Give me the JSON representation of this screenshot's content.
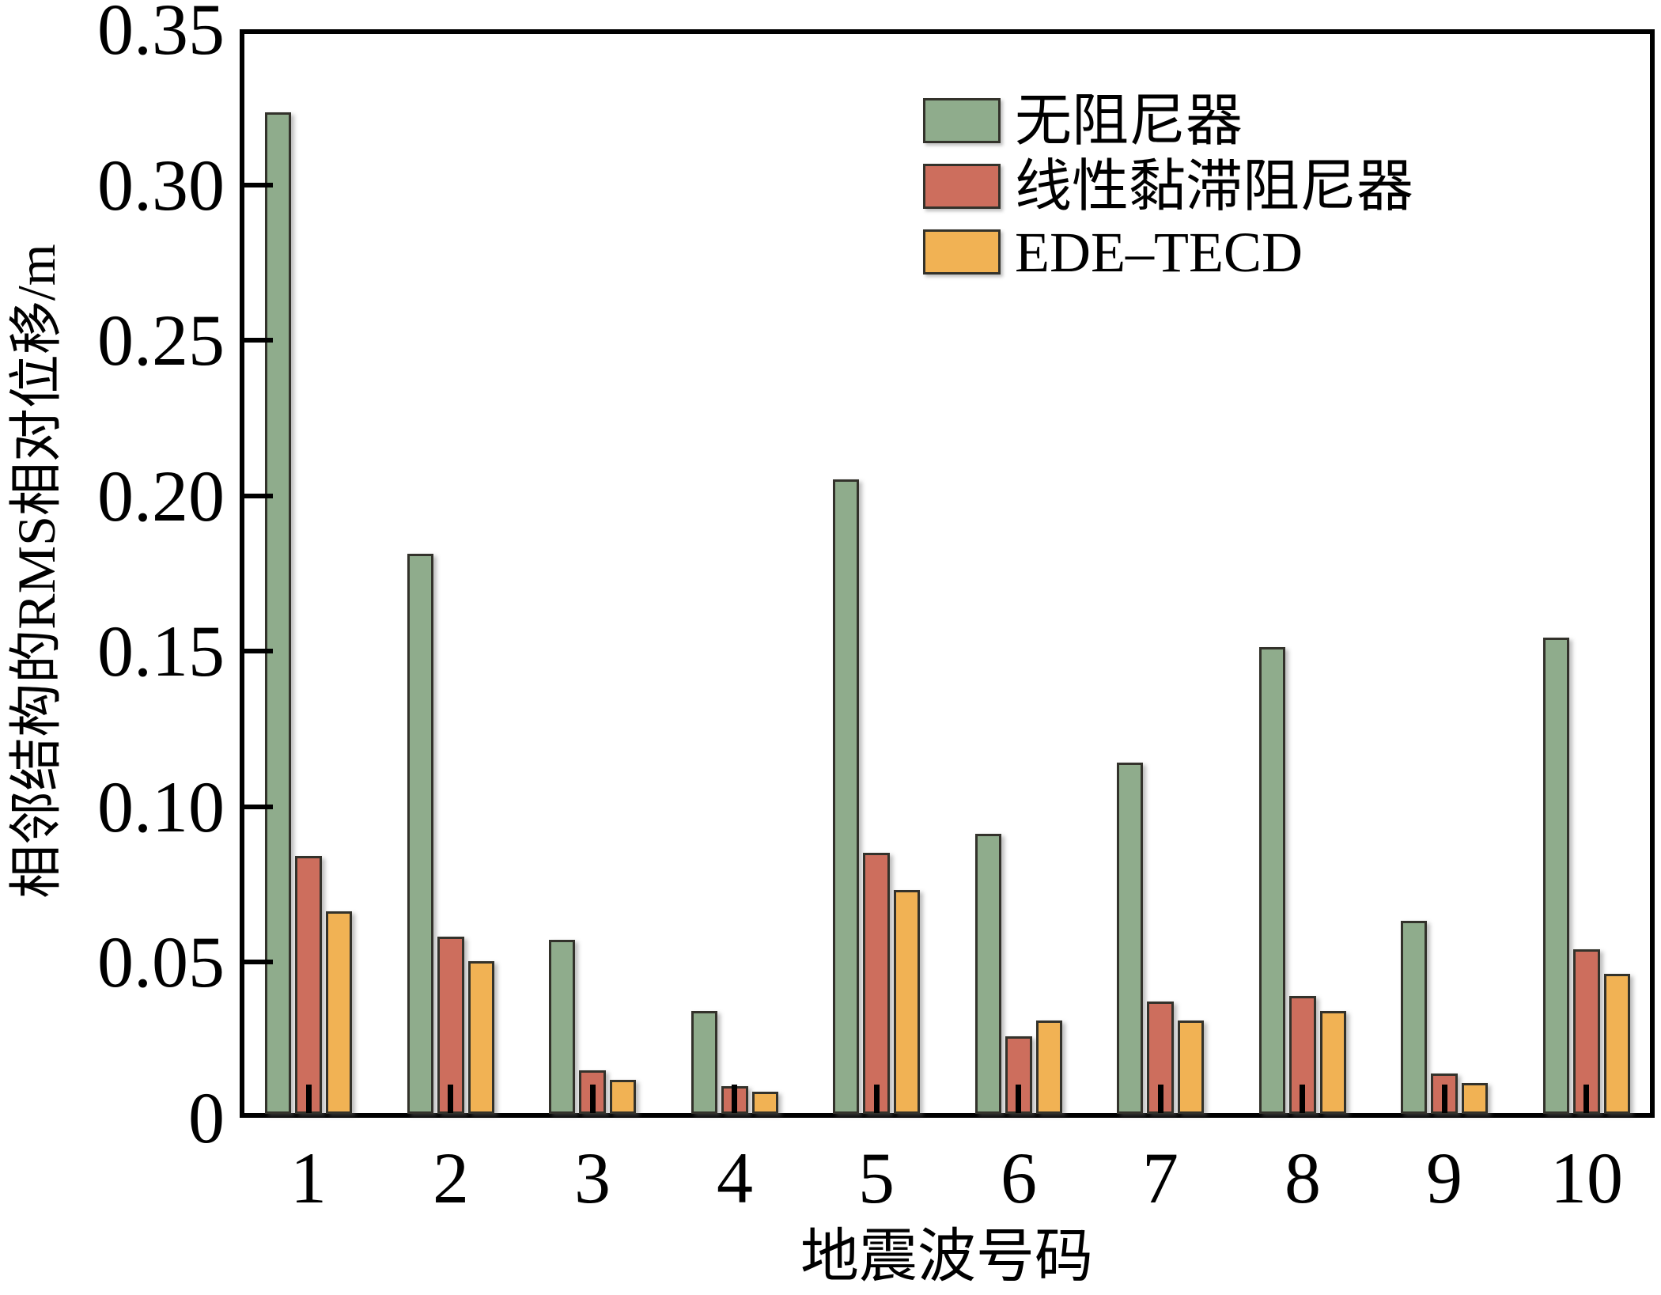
{
  "chart_data": {
    "type": "bar",
    "title": "",
    "xlabel": "地震波号码",
    "ylabel": "相邻结构的RMS相对位移/m",
    "categories": [
      "1",
      "2",
      "3",
      "4",
      "5",
      "6",
      "7",
      "8",
      "9",
      "10"
    ],
    "series": [
      {
        "name": "无阻尼器",
        "color": "#8FAC8C",
        "values": [
          0.322,
          0.18,
          0.056,
          0.033,
          0.204,
          0.09,
          0.113,
          0.15,
          0.062,
          0.153
        ]
      },
      {
        "name": "线性黏滞阻尼器",
        "color": "#CD6E5D",
        "values": [
          0.083,
          0.057,
          0.014,
          0.009,
          0.084,
          0.025,
          0.036,
          0.038,
          0.013,
          0.053
        ]
      },
      {
        "name": "EDE–TECD",
        "color": "#F1B254",
        "values": [
          0.065,
          0.049,
          0.011,
          0.007,
          0.072,
          0.03,
          0.03,
          0.033,
          0.01,
          0.045
        ]
      }
    ],
    "ylim": [
      0,
      0.35
    ],
    "yticks": [
      {
        "value": 0.0,
        "label": "0"
      },
      {
        "value": 0.05,
        "label": "0.05"
      },
      {
        "value": 0.1,
        "label": "0.10"
      },
      {
        "value": 0.15,
        "label": "0.15"
      },
      {
        "value": 0.2,
        "label": "0.20"
      },
      {
        "value": 0.25,
        "label": "0.25"
      },
      {
        "value": 0.3,
        "label": "0.30"
      },
      {
        "value": 0.35,
        "label": "0.35"
      }
    ],
    "grid": false,
    "legend_position": "upper-center inside",
    "tick_direction": "in",
    "bar_edge_color": "#33322B",
    "axis_color": "#000000",
    "background_color": "#FFFFFF"
  }
}
